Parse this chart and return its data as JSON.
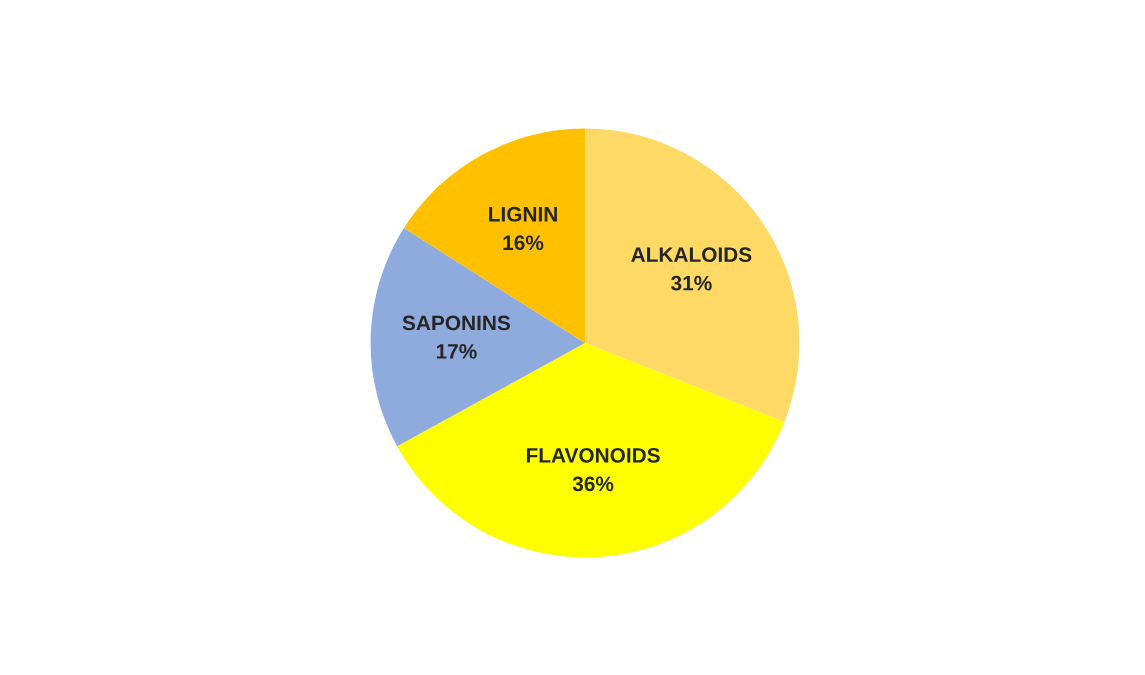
{
  "chart_data": {
    "type": "pie",
    "categories": [
      "ALKALOIDS",
      "FLAVONOIDS",
      "SAPONINS",
      "LIGNIN"
    ],
    "values": [
      31,
      36,
      17,
      16
    ],
    "value_labels": [
      "31%",
      "36%",
      "17%",
      "16%"
    ],
    "colors": [
      "#ffd966",
      "#ffff00",
      "#8faadc",
      "#ffc000"
    ],
    "legend": false
  }
}
